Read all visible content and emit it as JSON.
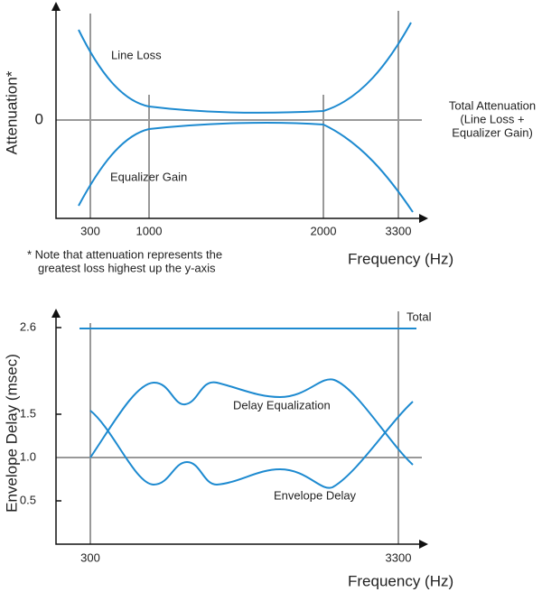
{
  "top": {
    "y_label": "Attenuation*",
    "zero_label": "0",
    "line_loss": "Line Loss",
    "equalizer_gain": "Equalizer Gain",
    "ticks": [
      "300",
      "1000",
      "2000",
      "3300"
    ],
    "side_note": [
      "Total Attenuation",
      "(Line Loss +",
      "Equalizer Gain)"
    ],
    "note": [
      "* Note that attenuation represents the",
      "greatest loss highest up the y-axis"
    ],
    "x_label": "Frequency (Hz)"
  },
  "bottom": {
    "y_label": "Envelope Delay (msec)",
    "yticks": [
      "2.6",
      "1.5",
      "1.0",
      "0.5"
    ],
    "total": "Total",
    "delay_equalization": "Delay Equalization",
    "envelope_delay": "Envelope Delay",
    "ticks": [
      "300",
      "3300"
    ],
    "x_label": "Frequency (Hz)"
  }
}
